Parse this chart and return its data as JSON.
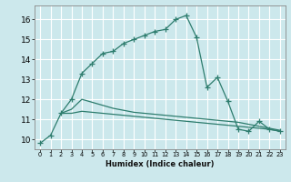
{
  "xlabel": "Humidex (Indice chaleur)",
  "background_color": "#cce8ec",
  "grid_color": "#ffffff",
  "line_color": "#2e7d6e",
  "xlim": [
    -0.5,
    23.5
  ],
  "ylim": [
    9.5,
    16.7
  ],
  "xticks": [
    0,
    1,
    2,
    3,
    4,
    5,
    6,
    7,
    8,
    9,
    10,
    11,
    12,
    13,
    14,
    15,
    16,
    17,
    18,
    19,
    20,
    21,
    22,
    23
  ],
  "yticks": [
    10,
    11,
    12,
    13,
    14,
    15,
    16
  ],
  "series": [
    {
      "x": [
        0,
        1,
        2,
        3,
        4,
        5,
        6,
        7,
        8,
        9,
        10,
        11,
        12,
        13,
        14,
        15,
        16,
        17,
        18,
        19,
        20,
        21,
        22,
        23
      ],
      "y": [
        9.8,
        10.2,
        11.3,
        12.0,
        13.3,
        13.8,
        14.3,
        14.4,
        14.8,
        15.0,
        15.2,
        15.4,
        15.5,
        16.0,
        16.2,
        15.1,
        12.6,
        13.1,
        11.9,
        10.5,
        10.4,
        10.9,
        10.5,
        10.4
      ],
      "marker": "+"
    },
    {
      "x": [
        2,
        3,
        4,
        5,
        6,
        7,
        8,
        9,
        10,
        11,
        12,
        13,
        14,
        15,
        16,
        17,
        18,
        19,
        20,
        21,
        22,
        23
      ],
      "y": [
        11.3,
        11.5,
        12.0,
        11.85,
        11.7,
        11.55,
        11.45,
        11.35,
        11.3,
        11.25,
        11.2,
        11.15,
        11.1,
        11.05,
        11.0,
        10.95,
        10.9,
        10.85,
        10.75,
        10.65,
        10.55,
        10.45
      ],
      "marker": null
    },
    {
      "x": [
        2,
        3,
        4,
        5,
        6,
        7,
        8,
        9,
        10,
        11,
        12,
        13,
        14,
        15,
        16,
        17,
        18,
        19,
        20,
        21,
        22,
        23
      ],
      "y": [
        11.3,
        11.3,
        11.4,
        11.35,
        11.3,
        11.25,
        11.2,
        11.15,
        11.1,
        11.05,
        11.0,
        10.95,
        10.9,
        10.85,
        10.8,
        10.75,
        10.7,
        10.65,
        10.6,
        10.55,
        10.5,
        10.4
      ],
      "marker": null
    }
  ]
}
